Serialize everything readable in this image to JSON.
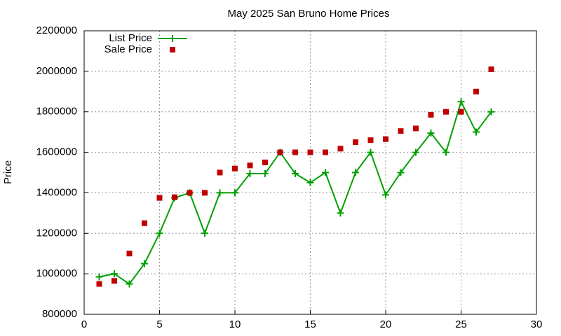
{
  "chart_data": {
    "type": "line",
    "title": "May 2025 San Bruno Home Prices",
    "y_label": "Price",
    "x": [
      1,
      2,
      3,
      4,
      5,
      6,
      7,
      8,
      9,
      10,
      11,
      12,
      13,
      14,
      15,
      16,
      17,
      18,
      19,
      20,
      21,
      22,
      23,
      24,
      25,
      26,
      27
    ],
    "series": [
      {
        "name": "List Price",
        "type": "line",
        "color": "#00a000",
        "values": [
          985000,
          1000000,
          950000,
          1050000,
          1200000,
          1375000,
          1400000,
          1200000,
          1400000,
          1400000,
          1495000,
          1495000,
          1600000,
          1495000,
          1450000,
          1500000,
          1300000,
          1500000,
          1600000,
          1390000,
          1500000,
          1600000,
          1695000,
          1600000,
          1850000,
          1700000,
          1800000
        ]
      },
      {
        "name": "Sale Price",
        "type": "scatter",
        "color": "#c00000",
        "values": [
          950000,
          965000,
          1100000,
          1250000,
          1375000,
          1378000,
          1400000,
          1400000,
          1500000,
          1520000,
          1535000,
          1550000,
          1600000,
          1600000,
          1600000,
          1600000,
          1618000,
          1650000,
          1660000,
          1665000,
          1705000,
          1718000,
          1785000,
          1800000,
          1800000,
          1900000,
          2010000
        ]
      }
    ],
    "xlim": [
      0,
      30
    ],
    "xticks": [
      0,
      5,
      10,
      15,
      20,
      25,
      30
    ],
    "ylim": [
      800000,
      2200000
    ],
    "yticks": [
      800000,
      1000000,
      1200000,
      1400000,
      1600000,
      1800000,
      2000000,
      2200000
    ],
    "grid": true,
    "legend": "top-left"
  }
}
